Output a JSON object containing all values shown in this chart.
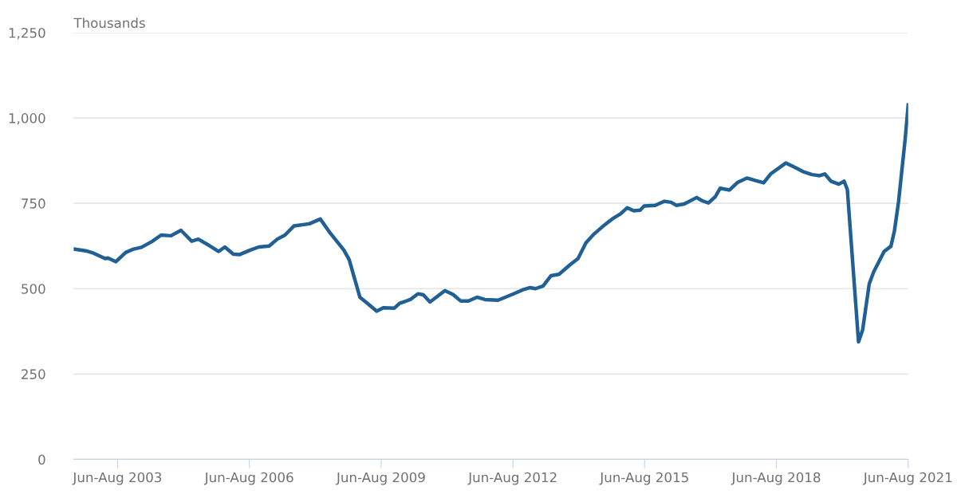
{
  "chart_data": {
    "type": "line",
    "ylabel": "Thousands",
    "x": [
      "2002-07-01",
      "2002-10-08",
      "2002-12-13",
      "2003-03-20",
      "2003-04-12",
      "2003-06-17",
      "2003-09-06",
      "2003-11-11",
      "2004-01-15",
      "2004-04-12",
      "2004-06-27",
      "2004-09-17",
      "2004-12-09",
      "2005-03-09",
      "2005-05-03",
      "2005-08-03",
      "2005-10-19",
      "2005-12-09",
      "2006-02-18",
      "2006-04-12",
      "2006-07-08",
      "2006-09-17",
      "2006-12-13",
      "2007-02-18",
      "2007-04-23",
      "2007-07-08",
      "2007-11-11",
      "2008-02-11",
      "2008-05-03",
      "2008-08-25",
      "2008-10-08",
      "2009-01-05",
      "2009-03-09",
      "2009-05-25",
      "2009-07-19",
      "2009-10-19",
      "2009-12-02",
      "2010-02-28",
      "2010-05-03",
      "2010-06-17",
      "2010-08-11",
      "2010-12-13",
      "2011-02-18",
      "2011-04-23",
      "2011-06-27",
      "2011-09-06",
      "2011-11-11",
      "2012-02-28",
      "2012-06-17",
      "2012-09-17",
      "2012-11-21",
      "2013-01-05",
      "2013-03-09",
      "2013-05-14",
      "2013-07-19",
      "2013-10-19",
      "2013-12-24",
      "2014-02-28",
      "2014-05-03",
      "2014-08-03",
      "2014-10-08",
      "2014-12-13",
      "2015-02-07",
      "2015-04-01",
      "2015-05-25",
      "2015-06-27",
      "2015-09-27",
      "2015-12-13",
      "2016-02-07",
      "2016-03-20",
      "2016-05-25",
      "2016-09-06",
      "2016-10-19",
      "2016-12-13",
      "2017-02-07",
      "2017-03-20",
      "2017-06-06",
      "2017-08-11",
      "2017-10-28",
      "2018-01-15",
      "2018-03-17",
      "2018-05-14",
      "2018-09-17",
      "2018-11-21",
      "2019-02-07",
      "2019-04-23",
      "2019-06-27",
      "2019-08-07",
      "2019-09-27",
      "2019-12-02",
      "2020-01-15",
      "2020-02-11",
      "2020-05-14",
      "2020-06-17",
      "2020-08-11",
      "2020-09-17",
      "2020-12-13",
      "2021-02-07",
      "2021-03-09",
      "2021-04-12",
      "2021-06-06",
      "2021-07-01"
    ],
    "series": [
      {
        "color": "#206095",
        "values": [
          616,
          611,
          604,
          588,
          590,
          579,
          606,
          616,
          621,
          638,
          657,
          655,
          671,
          639,
          645,
          626,
          609,
          622,
          601,
          600,
          613,
          622,
          625,
          645,
          657,
          684,
          690,
          704,
          663,
          613,
          585,
          475,
          457,
          434,
          444,
          443,
          457,
          468,
          485,
          482,
          461,
          494,
          483,
          464,
          464,
          475,
          468,
          466,
          482,
          496,
          503,
          500,
          508,
          538,
          542,
          570,
          588,
          634,
          659,
          687,
          705,
          719,
          737,
          728,
          730,
          742,
          744,
          756,
          753,
          744,
          748,
          767,
          758,
          751,
          769,
          794,
          789,
          811,
          824,
          816,
          810,
          836,
          868,
          857,
          843,
          834,
          831,
          836,
          815,
          806,
          815,
          790,
          344,
          379,
          514,
          549,
          609,
          624,
          670,
          755,
          939,
          1038
        ]
      }
    ],
    "xlim": [
      "2002-07-01",
      "2021-07-01"
    ],
    "xticks": [
      {
        "value": "2003-07-01",
        "label": "Jun-Aug 2003"
      },
      {
        "value": "2006-07-01",
        "label": "Jun-Aug 2006"
      },
      {
        "value": "2009-07-01",
        "label": "Jun-Aug 2009"
      },
      {
        "value": "2012-07-01",
        "label": "Jun-Aug 2012"
      },
      {
        "value": "2015-07-01",
        "label": "Jun-Aug 2015"
      },
      {
        "value": "2018-07-01",
        "label": "Jun-Aug 2018"
      },
      {
        "value": "2021-07-01",
        "label": "Jun-Aug 2021"
      }
    ],
    "ylim": [
      0,
      1250
    ],
    "yticks": [
      0,
      250,
      500,
      750,
      {
        "value": 1000,
        "label": "1,000"
      },
      {
        "value": 1250,
        "label": "1,250"
      }
    ],
    "grid": "y",
    "marker": "none",
    "line_style": "solid"
  }
}
